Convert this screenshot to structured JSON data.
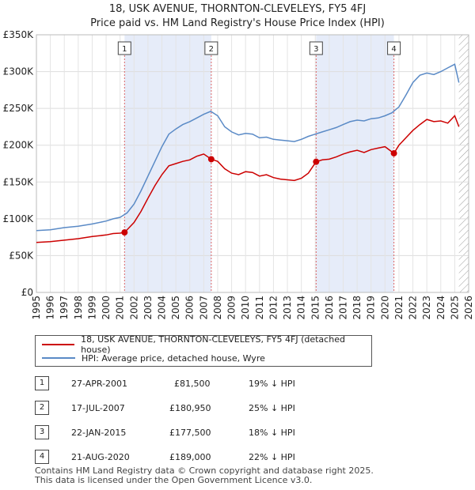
{
  "title": "18, USK AVENUE, THORNTON-CLEVELEYS, FY5 4FJ",
  "subtitle": "Price paid vs. HM Land Registry's House Price Index (HPI)",
  "chart_data": {
    "type": "line",
    "title": "18, USK AVENUE, THORNTON-CLEVELEYS, FY5 4FJ",
    "xlim": [
      1995,
      2026
    ],
    "ylim": [
      0,
      350000
    ],
    "yticks": [
      0,
      50000,
      100000,
      150000,
      200000,
      250000,
      300000,
      350000
    ],
    "ytick_labels": [
      "£0",
      "£50K",
      "£100K",
      "£150K",
      "£200K",
      "£250K",
      "£300K",
      "£350K"
    ],
    "xticks": [
      "1995",
      "1996",
      "1997",
      "1998",
      "1999",
      "2000",
      "2001",
      "2002",
      "2003",
      "2004",
      "2005",
      "2006",
      "2007",
      "2008",
      "2009",
      "2010",
      "2011",
      "2012",
      "2013",
      "2014",
      "2015",
      "2016",
      "2017",
      "2018",
      "2019",
      "2020",
      "2021",
      "2022",
      "2023",
      "2024",
      "2025",
      "2026"
    ],
    "grid": true,
    "series": [
      {
        "name": "18, USK AVENUE, THORNTON-CLEVELEYS, FY5 4FJ (detached house)",
        "color": "#cc0000",
        "x": [
          1995.0,
          1996.0,
          1997.0,
          1998.0,
          1999.0,
          2000.0,
          2000.5,
          2001.0,
          2001.32,
          2002.0,
          2002.5,
          2003.0,
          2003.5,
          2004.0,
          2004.5,
          2005.0,
          2005.5,
          2006.0,
          2006.5,
          2007.0,
          2007.54,
          2008.0,
          2008.5,
          2009.0,
          2009.5,
          2010.0,
          2010.5,
          2011.0,
          2011.5,
          2012.0,
          2012.5,
          2013.0,
          2013.5,
          2014.0,
          2014.5,
          2015.06,
          2015.5,
          2016.0,
          2016.5,
          2017.0,
          2017.5,
          2018.0,
          2018.5,
          2019.0,
          2019.5,
          2020.0,
          2020.64,
          2021.0,
          2021.5,
          2022.0,
          2022.5,
          2023.0,
          2023.5,
          2024.0,
          2024.5,
          2025.0,
          2025.3
        ],
        "y": [
          68000,
          69000,
          71000,
          73000,
          76000,
          78000,
          80000,
          80500,
          81500,
          95000,
          110000,
          128000,
          145000,
          160000,
          172000,
          175000,
          178000,
          180000,
          185000,
          188000,
          180950,
          178000,
          168000,
          162000,
          160000,
          164000,
          163000,
          158000,
          160000,
          156000,
          154000,
          153000,
          152000,
          155000,
          162000,
          177500,
          180000,
          181000,
          184000,
          188000,
          191000,
          193000,
          190000,
          194000,
          196000,
          198000,
          189000,
          200000,
          210000,
          220000,
          228000,
          235000,
          232000,
          233000,
          230000,
          240000,
          225000
        ]
      },
      {
        "name": "HPI: Average price, detached house, Wyre",
        "color": "#5a8ac6",
        "x": [
          1995.0,
          1996.0,
          1997.0,
          1998.0,
          1999.0,
          2000.0,
          2000.5,
          2001.0,
          2001.5,
          2002.0,
          2002.5,
          2003.0,
          2003.5,
          2004.0,
          2004.5,
          2005.0,
          2005.5,
          2006.0,
          2006.5,
          2007.0,
          2007.5,
          2008.0,
          2008.5,
          2009.0,
          2009.5,
          2010.0,
          2010.5,
          2011.0,
          2011.5,
          2012.0,
          2012.5,
          2013.0,
          2013.5,
          2014.0,
          2014.5,
          2015.0,
          2015.5,
          2016.0,
          2016.5,
          2017.0,
          2017.5,
          2018.0,
          2018.5,
          2019.0,
          2019.5,
          2020.0,
          2020.5,
          2021.0,
          2021.5,
          2022.0,
          2022.5,
          2023.0,
          2023.5,
          2024.0,
          2024.5,
          2025.0,
          2025.3
        ],
        "y": [
          84000,
          85000,
          88000,
          90000,
          93000,
          97000,
          100000,
          102000,
          108000,
          120000,
          138000,
          158000,
          178000,
          198000,
          215000,
          222000,
          228000,
          232000,
          237000,
          242000,
          246000,
          240000,
          225000,
          218000,
          214000,
          216000,
          215000,
          210000,
          211000,
          208000,
          207000,
          206000,
          205000,
          208000,
          212000,
          215000,
          218000,
          221000,
          224000,
          228000,
          232000,
          234000,
          233000,
          236000,
          237000,
          240000,
          244000,
          252000,
          268000,
          285000,
          295000,
          298000,
          296000,
          300000,
          305000,
          310000,
          285000
        ]
      }
    ],
    "sales": [
      {
        "label": "1",
        "x": 2001.32,
        "y": 81500
      },
      {
        "label": "2",
        "x": 2007.54,
        "y": 180950
      },
      {
        "label": "3",
        "x": 2015.06,
        "y": 177500
      },
      {
        "label": "4",
        "x": 2020.64,
        "y": 189000
      }
    ],
    "shaded_spans": [
      [
        2001.32,
        2007.54
      ],
      [
        2015.06,
        2020.64
      ]
    ],
    "future_hatch_from": 2025.3
  },
  "legend": {
    "property_label": "18, USK AVENUE, THORNTON-CLEVELEYS, FY5 4FJ (detached house)",
    "hpi_label": "HPI: Average price, detached house, Wyre"
  },
  "table": [
    {
      "num": "1",
      "date": "27-APR-2001",
      "price": "£81,500",
      "hpi": "19% ↓ HPI"
    },
    {
      "num": "2",
      "date": "17-JUL-2007",
      "price": "£180,950",
      "hpi": "25% ↓ HPI"
    },
    {
      "num": "3",
      "date": "22-JAN-2015",
      "price": "£177,500",
      "hpi": "18% ↓ HPI"
    },
    {
      "num": "4",
      "date": "21-AUG-2020",
      "price": "£189,000",
      "hpi": "22% ↓ HPI"
    }
  ],
  "footer": {
    "line1": "Contains HM Land Registry data © Crown copyright and database right 2025.",
    "line2": "This data is licensed under the Open Government Licence v3.0."
  }
}
